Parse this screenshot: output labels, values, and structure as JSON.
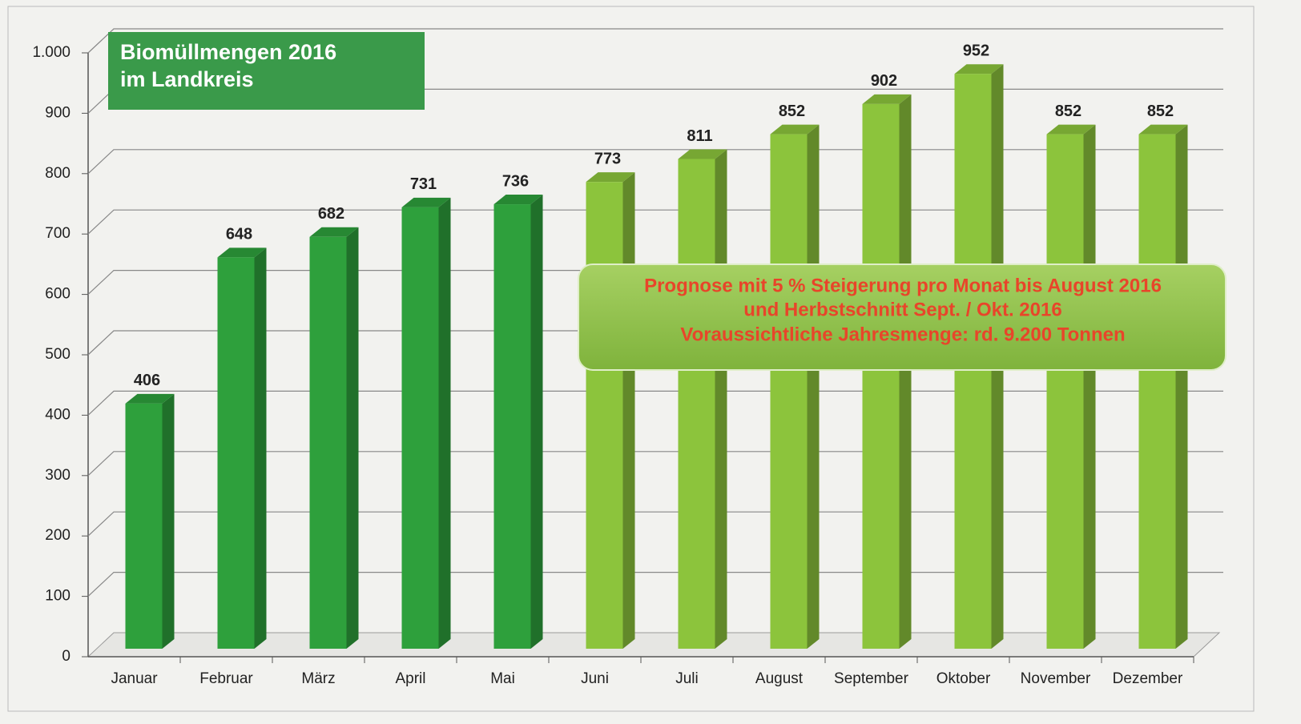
{
  "chart_data": {
    "type": "bar3d",
    "title": [
      "Biomüllmengen 2016",
      "im Landkreis"
    ],
    "annotation": [
      "Prognose mit 5 % Steigerung  pro Monat bis August 2016",
      "und Herbstschnitt Sept.  / Okt. 2016",
      "Voraussichtliche Jahresmenge: rd. 9.200 Tonnen"
    ],
    "categories": [
      "Januar",
      "Februar",
      "März",
      "April",
      "Mai",
      "Juni",
      "Juli",
      "August",
      "September",
      "Oktober",
      "November",
      "Dezember"
    ],
    "values": [
      406,
      648,
      682,
      731,
      736,
      773,
      811,
      852,
      902,
      952,
      852,
      852
    ],
    "colors": [
      "#2ea03c",
      "#2ea03c",
      "#2ea03c",
      "#2ea03c",
      "#2ea03c",
      "#8cc43c",
      "#8cc43c",
      "#8cc43c",
      "#8cc43c",
      "#8cc43c",
      "#8cc43c",
      "#8cc43c"
    ],
    "ylim": [
      0,
      1000
    ],
    "yticks": [
      0,
      100,
      200,
      300,
      400,
      500,
      600,
      700,
      800,
      900,
      {
        "value": 1000,
        "label": "1.000"
      }
    ],
    "grid": true
  }
}
